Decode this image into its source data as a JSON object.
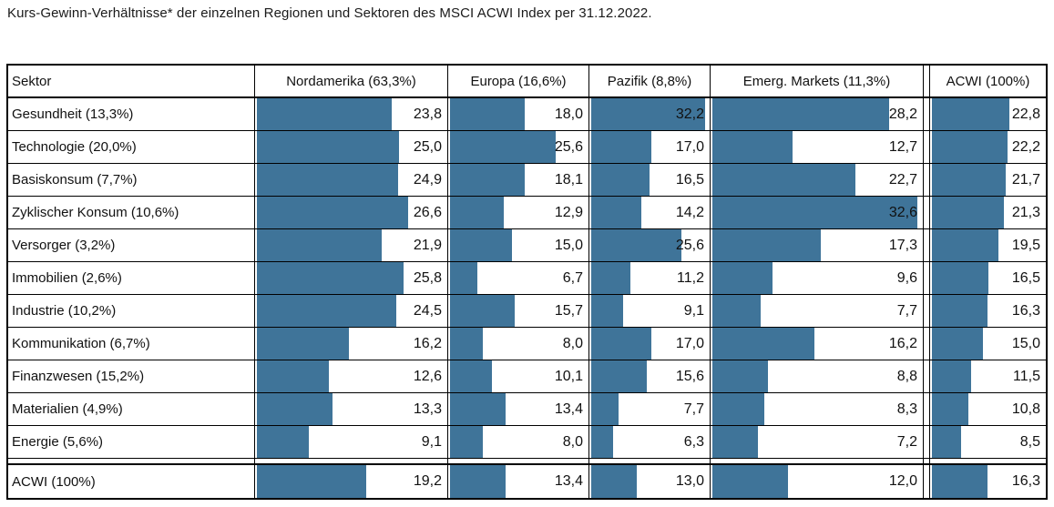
{
  "title": "Kurs-Gewinn-Verhältnisse* der einzelnen Regionen und Sektoren des MSCI ACWI Index per 31.12.2022.",
  "accent_color": "#3F7499",
  "chart_data": {
    "type": "table",
    "subtype": "bar-in-cell",
    "title": "Kurs-Gewinn-Verhältnisse* der einzelnen Regionen und Sektoren des MSCI ACWI Index per 31.12.2022.",
    "columns": [
      "Sektor",
      "Nordamerika (63,3%)",
      "Europa (16,6%)",
      "Pazifik (8,8%)",
      "Emerg. Markets (11,3%)",
      "ACWI (100%)"
    ],
    "value_scale_max": 33.5,
    "decimal_separator": ",",
    "bar_color": "#3F7499",
    "rows": [
      {
        "label": "Gesundheit (13,3%)",
        "values": [
          23.8,
          18.0,
          32.2,
          28.2,
          22.8
        ]
      },
      {
        "label": "Technologie (20,0%)",
        "values": [
          25.0,
          25.6,
          17.0,
          12.7,
          22.2
        ]
      },
      {
        "label": "Basiskonsum (7,7%)",
        "values": [
          24.9,
          18.1,
          16.5,
          22.7,
          21.7
        ]
      },
      {
        "label": "Zyklischer Konsum (10,6%)",
        "values": [
          26.6,
          12.9,
          14.2,
          32.6,
          21.3
        ]
      },
      {
        "label": "Versorger (3,2%)",
        "values": [
          21.9,
          15.0,
          25.6,
          17.3,
          19.5
        ]
      },
      {
        "label": "Immobilien (2,6%)",
        "values": [
          25.8,
          6.7,
          11.2,
          9.6,
          16.5
        ]
      },
      {
        "label": "Industrie (10,2%)",
        "values": [
          24.5,
          15.7,
          9.1,
          7.7,
          16.3
        ]
      },
      {
        "label": "Kommunikation (6,7%)",
        "values": [
          16.2,
          8.0,
          17.0,
          16.2,
          15.0
        ]
      },
      {
        "label": "Finanzwesen (15,2%)",
        "values": [
          12.6,
          10.1,
          15.6,
          8.8,
          11.5
        ]
      },
      {
        "label": "Materialien (4,9%)",
        "values": [
          13.3,
          13.4,
          7.7,
          8.3,
          10.8
        ]
      },
      {
        "label": "Energie (5,6%)",
        "values": [
          9.1,
          8.0,
          6.3,
          7.2,
          8.5
        ]
      }
    ],
    "footer": {
      "label": "ACWI (100%)",
      "values": [
        19.2,
        13.4,
        13.0,
        12.0,
        16.3
      ]
    }
  }
}
